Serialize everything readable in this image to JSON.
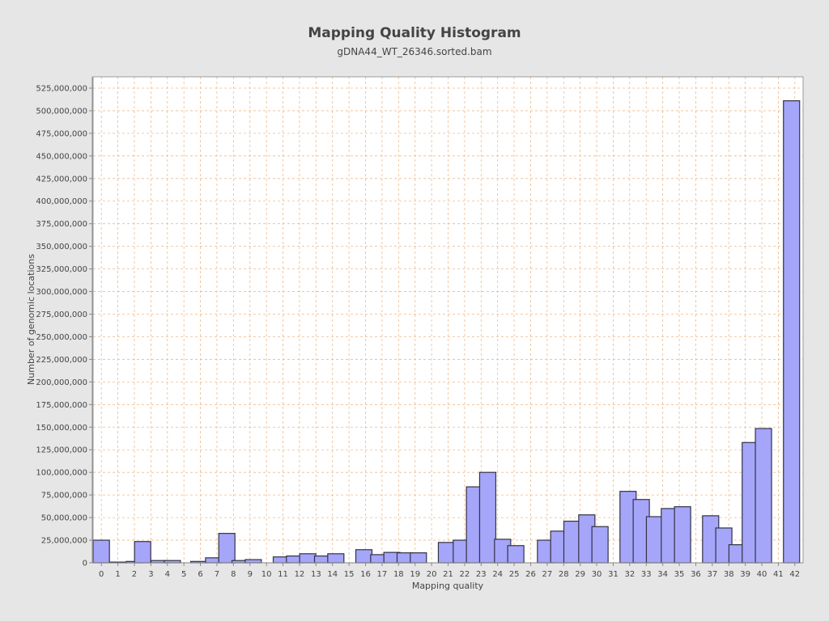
{
  "chart_data": {
    "type": "bar",
    "title": "Mapping Quality Histogram",
    "subtitle": "gDNA44_WT_26346.sorted.bam",
    "xlabel": "Mapping quality",
    "ylabel": "Number of genomic locations",
    "xlim": [
      -0.5,
      42.5
    ],
    "ylim": [
      0,
      537500000
    ],
    "grid": true,
    "x_ticks": [
      0,
      1,
      2,
      3,
      4,
      5,
      6,
      7,
      8,
      9,
      10,
      11,
      12,
      13,
      14,
      15,
      16,
      17,
      18,
      19,
      20,
      21,
      22,
      23,
      24,
      25,
      26,
      27,
      28,
      29,
      30,
      31,
      32,
      33,
      34,
      35,
      36,
      37,
      38,
      39,
      40,
      41,
      42
    ],
    "y_ticks": [
      0,
      25000000,
      50000000,
      75000000,
      100000000,
      125000000,
      150000000,
      175000000,
      200000000,
      225000000,
      250000000,
      275000000,
      300000000,
      325000000,
      350000000,
      375000000,
      400000000,
      425000000,
      450000000,
      475000000,
      500000000,
      525000000
    ],
    "y_tick_labels": [
      "0",
      "25,000,000",
      "50,000,000",
      "75,000,000",
      "100,000,000",
      "125,000,000",
      "150,000,000",
      "175,000,000",
      "200,000,000",
      "225,000,000",
      "250,000,000",
      "275,000,000",
      "300,000,000",
      "325,000,000",
      "350,000,000",
      "375,000,000",
      "400,000,000",
      "425,000,000",
      "450,000,000",
      "475,000,000",
      "500,000,000",
      "525,000,000"
    ],
    "bars": [
      {
        "x": 0,
        "value": 25000000
      },
      {
        "x": 1,
        "value": 800000
      },
      {
        "x": 2,
        "value": 1500000
      },
      {
        "x": 2.5,
        "value": 23500000
      },
      {
        "x": 3.5,
        "value": 2500000
      },
      {
        "x": 4.3,
        "value": 2500000
      },
      {
        "x": 5.9,
        "value": 1500000
      },
      {
        "x": 6.8,
        "value": 5500000
      },
      {
        "x": 7.6,
        "value": 32500000
      },
      {
        "x": 8.4,
        "value": 2500000
      },
      {
        "x": 9.2,
        "value": 3500000
      },
      {
        "x": 10.9,
        "value": 6500000
      },
      {
        "x": 11.7,
        "value": 7500000
      },
      {
        "x": 12.5,
        "value": 10000000
      },
      {
        "x": 13.4,
        "value": 7500000
      },
      {
        "x": 14.2,
        "value": 10000000
      },
      {
        "x": 15.9,
        "value": 14500000
      },
      {
        "x": 16.8,
        "value": 9000000
      },
      {
        "x": 17.6,
        "value": 11500000
      },
      {
        "x": 18.4,
        "value": 11000000
      },
      {
        "x": 19.2,
        "value": 11000000
      },
      {
        "x": 20.9,
        "value": 22500000
      },
      {
        "x": 21.8,
        "value": 25000000
      },
      {
        "x": 22.6,
        "value": 84000000
      },
      {
        "x": 23.4,
        "value": 100000000
      },
      {
        "x": 24.3,
        "value": 26000000
      },
      {
        "x": 25.1,
        "value": 19000000
      },
      {
        "x": 26.9,
        "value": 25000000
      },
      {
        "x": 27.7,
        "value": 35000000
      },
      {
        "x": 28.5,
        "value": 46000000
      },
      {
        "x": 29.4,
        "value": 53000000
      },
      {
        "x": 30.2,
        "value": 40000000
      },
      {
        "x": 31.9,
        "value": 79000000
      },
      {
        "x": 32.7,
        "value": 70000000
      },
      {
        "x": 33.5,
        "value": 51000000
      },
      {
        "x": 34.4,
        "value": 60000000
      },
      {
        "x": 35.2,
        "value": 62000000
      },
      {
        "x": 36.9,
        "value": 52000000
      },
      {
        "x": 37.7,
        "value": 38500000
      },
      {
        "x": 38.5,
        "value": 20000000
      },
      {
        "x": 39.3,
        "value": 133000000
      },
      {
        "x": 40.1,
        "value": 148500000
      },
      {
        "x": 41.8,
        "value": 511000000
      }
    ]
  }
}
